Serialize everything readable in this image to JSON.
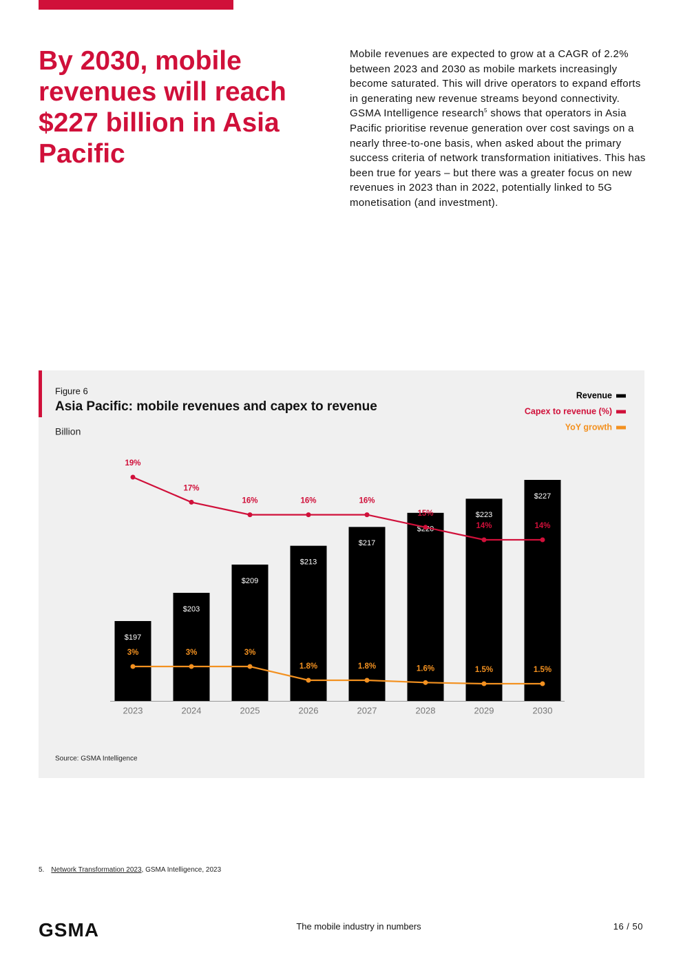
{
  "header": {
    "title": "By 2030, mobile revenues will reach $227 billion in Asia Pacific"
  },
  "body": {
    "before": "Mobile revenues are expected to grow at a CAGR of 2.2% between 2023 and 2030 as mobile markets increasingly become saturated. This will drive operators to expand efforts in generating new revenue streams beyond connectivity. GSMA Intelligence research",
    "sup": "5",
    "after": " shows that operators in Asia Pacific prioritise revenue generation over cost savings on a nearly three-to-one basis, when asked about the primary success criteria of network transformation initiatives. This has been true for years – but there was a greater focus on new revenues in 2023 than in 2022, potentially linked to 5G monetisation (and investment)."
  },
  "chart_data": {
    "type": "bar",
    "figure_label": "Figure 6",
    "title": "Asia Pacific: mobile revenues and capex to revenue",
    "unit": "Billion",
    "categories": [
      "2023",
      "2024",
      "2025",
      "2026",
      "2027",
      "2028",
      "2029",
      "2030"
    ],
    "series": [
      {
        "name": "Revenue",
        "type": "bar",
        "color": "#000000",
        "values": [
          197,
          203,
          209,
          213,
          217,
          220,
          223,
          227
        ],
        "value_labels": [
          "$197",
          "$203",
          "$209",
          "$213",
          "$217",
          "$220",
          "$223",
          "$227"
        ]
      },
      {
        "name": "Capex to revenue (%)",
        "type": "line",
        "color": "#d0103a",
        "values": [
          19,
          17,
          16,
          16,
          16,
          15,
          14,
          14
        ],
        "value_labels": [
          "19%",
          "17%",
          "16%",
          "16%",
          "16%",
          "15%",
          "14%",
          "14%"
        ]
      },
      {
        "name": "YoY growth",
        "type": "line",
        "color": "#f39120",
        "values": [
          3,
          3,
          3,
          1.8,
          1.8,
          1.6,
          1.5,
          1.5
        ],
        "value_labels": [
          "3%",
          "3%",
          "3%",
          "1.8%",
          "1.8%",
          "1.6%",
          "1.5%",
          "1.5%"
        ]
      }
    ],
    "source": "Source: GSMA Intelligence"
  },
  "footnote": {
    "number": "5.",
    "link": "Network Transformation 2023",
    "rest": ", GSMA Intelligence, 2023"
  },
  "footer": {
    "logo": "GSMA",
    "center": "The mobile industry in numbers",
    "page": "16 / 50"
  }
}
